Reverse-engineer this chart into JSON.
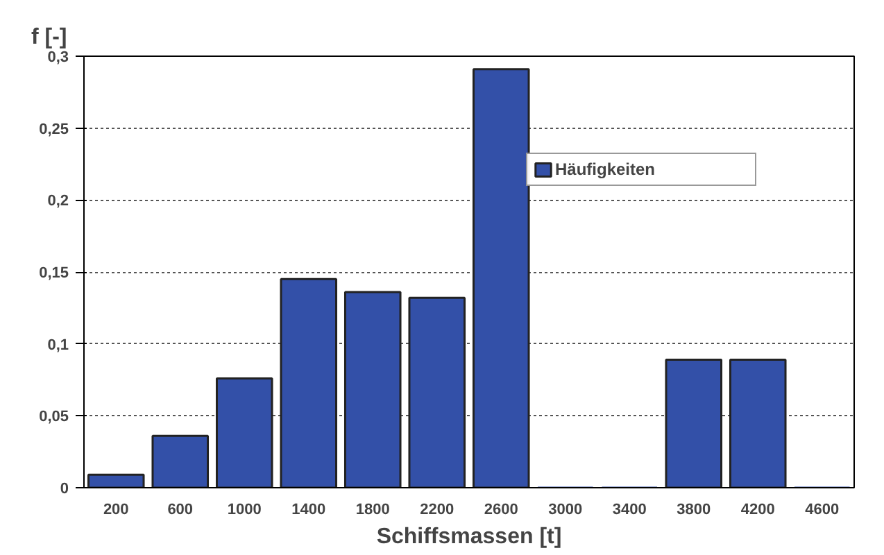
{
  "chart_data": {
    "type": "bar",
    "xlabel": "Schiffsmassen [t]",
    "ylabel": "f [-]",
    "categories": [
      "200",
      "600",
      "1000",
      "1400",
      "1800",
      "2200",
      "2600",
      "3000",
      "3400",
      "3800",
      "4200",
      "4600"
    ],
    "series": [
      {
        "name": "Häufigkeiten",
        "color": "#3350a8",
        "values": [
          0.009,
          0.036,
          0.076,
          0.145,
          0.136,
          0.132,
          0.291,
          0,
          0,
          0.089,
          0.089,
          0
        ]
      }
    ],
    "ylim": [
      0,
      0.3
    ],
    "yticks": [
      {
        "value": 0,
        "label": "0"
      },
      {
        "value": 0.05,
        "label": "0,05"
      },
      {
        "value": 0.1,
        "label": "0,1"
      },
      {
        "value": 0.15,
        "label": "0,15"
      },
      {
        "value": 0.2,
        "label": "0,2"
      },
      {
        "value": 0.25,
        "label": "0,25"
      },
      {
        "value": 0.3,
        "label": "0,3"
      }
    ],
    "grid": "y",
    "legend": "top right"
  }
}
